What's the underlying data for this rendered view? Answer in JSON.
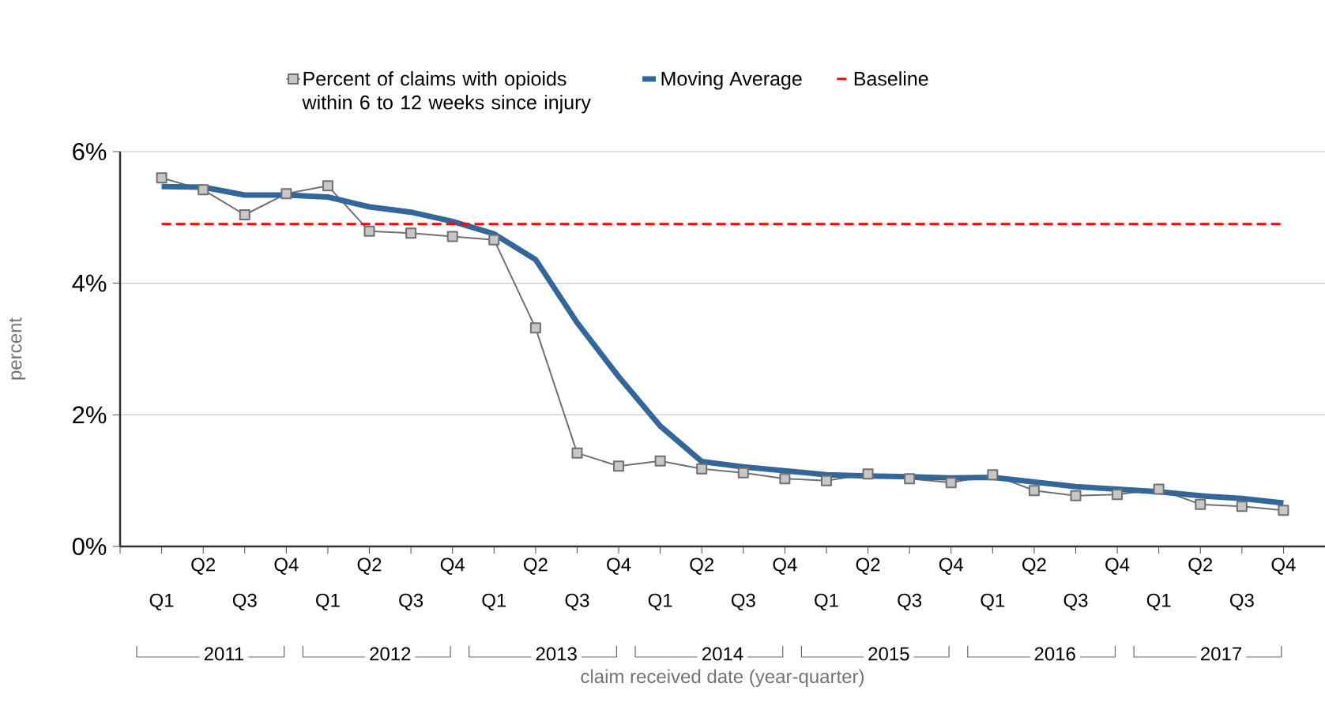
{
  "chart_data": {
    "type": "line",
    "categories": [
      "Q1",
      "Q2",
      "Q3",
      "Q4",
      "Q1",
      "Q2",
      "Q3",
      "Q4",
      "Q1",
      "Q2",
      "Q3",
      "Q4",
      "Q1",
      "Q2",
      "Q3",
      "Q4",
      "Q1",
      "Q2",
      "Q3",
      "Q4",
      "Q1",
      "Q2",
      "Q3",
      "Q4",
      "Q1",
      "Q2",
      "Q3",
      "Q4"
    ],
    "annotations": [
      "2011",
      "2012",
      "2013",
      "2014",
      "2015",
      "2016",
      "2017"
    ],
    "xlabel": "claim received date (year-quarter)",
    "ylabel": "percent",
    "ylim": [
      0,
      6
    ],
    "yticks": [
      {
        "value": 0,
        "label": "0%"
      },
      {
        "value": 2,
        "label": "2%"
      },
      {
        "value": 4,
        "label": "4%"
      },
      {
        "value": 6,
        "label": "6%"
      }
    ],
    "grid": "y",
    "legend": "top",
    "series": [
      {
        "name": "Percent of claims with opioids within 6 to 12 weeks since injury",
        "color": "#707070",
        "marker": "square",
        "values": [
          5.6,
          5.42,
          5.04,
          5.36,
          5.48,
          4.79,
          4.76,
          4.71,
          4.66,
          3.32,
          1.42,
          1.22,
          1.3,
          1.18,
          1.12,
          1.03,
          1.0,
          1.1,
          1.03,
          0.97,
          1.09,
          0.85,
          0.77,
          0.79,
          0.87,
          0.64,
          0.61,
          0.55
        ]
      },
      {
        "name": "Moving Average",
        "color": "#336699",
        "marker": "none",
        "values": [
          5.47,
          5.46,
          5.34,
          5.34,
          5.31,
          5.16,
          5.08,
          4.94,
          4.75,
          4.36,
          3.4,
          2.58,
          1.83,
          1.29,
          1.21,
          1.15,
          1.09,
          1.07,
          1.06,
          1.04,
          1.05,
          0.98,
          0.91,
          0.87,
          0.83,
          0.77,
          0.73,
          0.66
        ]
      }
    ],
    "ref_lines": [
      {
        "axis": "y",
        "value": 4.9,
        "label": "Baseline",
        "color": "#ff0000",
        "line_style": "dashed"
      }
    ]
  }
}
